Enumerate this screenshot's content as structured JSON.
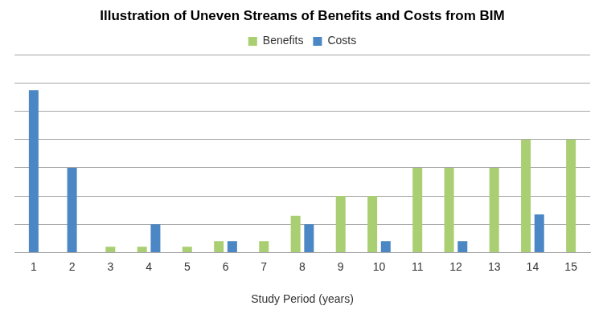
{
  "chart_data": {
    "type": "bar",
    "title": "Illustration of Uneven Streams of Benefits and Costs from BIM",
    "x_label": "Study Period (years)",
    "categories": [
      1,
      2,
      3,
      4,
      5,
      6,
      7,
      8,
      9,
      10,
      11,
      12,
      13,
      14,
      15
    ],
    "series": [
      {
        "name": "Benefits",
        "color": "#a9cf72",
        "values": [
          null,
          null,
          0.2,
          0.2,
          0.2,
          0.4,
          0.4,
          1.3,
          2,
          2,
          3,
          3,
          3,
          4,
          4
        ]
      },
      {
        "name": "Costs",
        "color": "#4a87c4",
        "values": [
          5.75,
          3,
          null,
          1,
          null,
          0.4,
          null,
          1,
          null,
          0.4,
          null,
          0.4,
          null,
          1.35,
          null
        ]
      }
    ],
    "ylim": [
      0,
      7
    ],
    "yticks": [
      0,
      1,
      2,
      3,
      4,
      5,
      6,
      7
    ],
    "grid": true,
    "legend": "top",
    "tick_labels": "x"
  }
}
